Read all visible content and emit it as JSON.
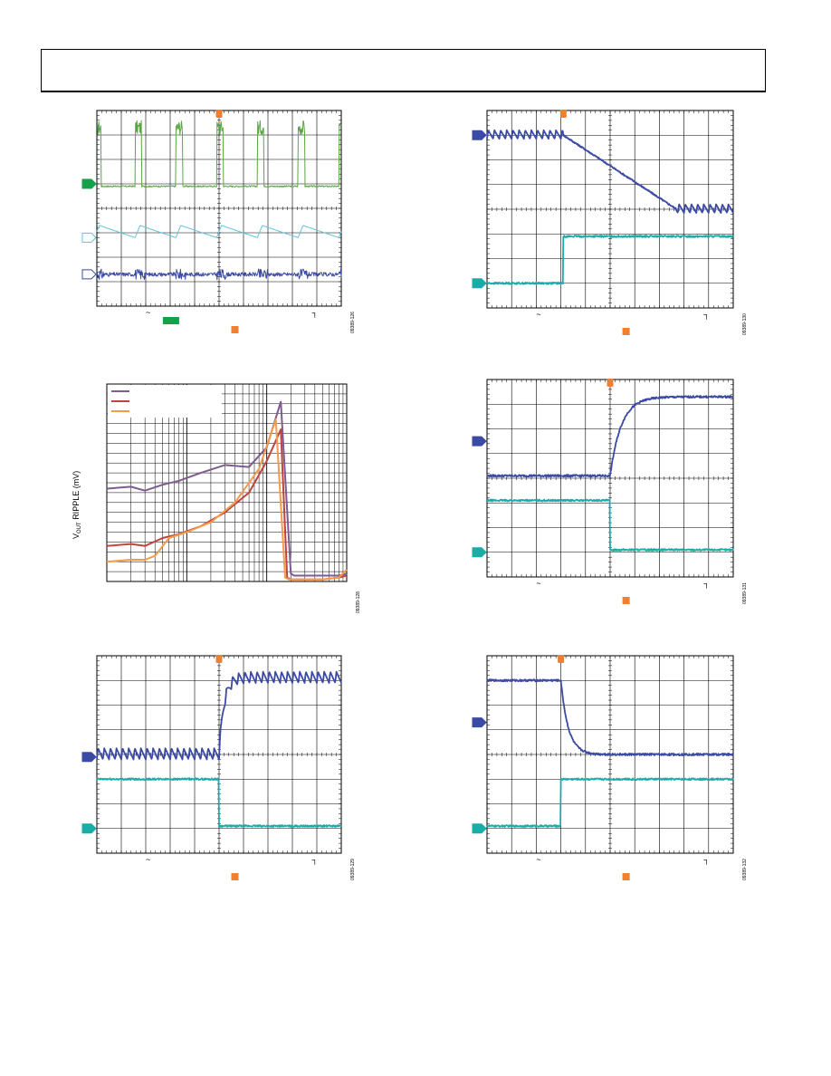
{
  "colors": {
    "ch1_green": "#5aa544",
    "ch2_lightblue": "#63c1de",
    "ch3_navy": "#3b4aa5",
    "ch_teal": "#1aada7",
    "trigger_orange": "#f07f30",
    "grid": "#000000",
    "purple": "#7e5b90",
    "red": "#c0443e",
    "orange": "#f39b49",
    "marker_green": "#15a14a"
  },
  "chart_data": [
    {
      "id": "fig126",
      "type": "line",
      "kind": "oscilloscope",
      "figure_id": "09389-126",
      "grid": true,
      "grid_divisions": [
        10,
        8
      ],
      "channel_markers": [
        "filled-green",
        "outline-lightblue",
        "outline-navy"
      ],
      "series": [
        {
          "color_key": "ch1_green",
          "shape": "switching-pulses",
          "pulses": 6,
          "level_low_div": 4.9,
          "level_high_div": 7.3
        },
        {
          "color_key": "ch2_lightblue",
          "shape": "sawtooth",
          "periods": 6,
          "level_low_div": 2.8,
          "level_high_div": 3.3
        },
        {
          "color_key": "ch3_navy",
          "shape": "noise",
          "level_div": 1.3
        }
      ],
      "trigger_x_div": 5.0
    },
    {
      "id": "fig130",
      "type": "line",
      "kind": "oscilloscope",
      "figure_id": "09389-130",
      "grid": true,
      "grid_divisions": [
        10,
        8
      ],
      "series": [
        {
          "color_key": "ch3_navy",
          "shape": "ripple-then-ramp-down",
          "level_start_div": 7.0,
          "level_end_div": 4.0,
          "ramp_start_div": 3.1,
          "ramp_end_div": 7.7
        },
        {
          "color_key": "ch_teal",
          "shape": "step-up",
          "level_low_div": 1.0,
          "level_high_div": 2.9,
          "step_div": 3.1
        }
      ],
      "trigger_x_div": 3.1
    },
    {
      "id": "fig128",
      "type": "line",
      "figure_id": "09389-128",
      "ylabel": "V",
      "ylabel_sub": "OUT",
      "ylabel_rest": " RIPPLE (mV)",
      "xscale": "log",
      "xlim": [
        1,
        1000
      ],
      "ylim": [
        0,
        10
      ],
      "grid": true,
      "legend_position": "top-left",
      "series": [
        {
          "color_key": "purple",
          "x": [
            1,
            2,
            3,
            5,
            8,
            15,
            30,
            60,
            100,
            150,
            200,
            220,
            250,
            300,
            500,
            800,
            1000
          ],
          "y": [
            4.7,
            4.8,
            4.6,
            4.9,
            5.1,
            5.5,
            5.9,
            5.8,
            6.8,
            9.1,
            0.4,
            0.3,
            0.3,
            0.3,
            0.3,
            0.3,
            0.4
          ]
        },
        {
          "color_key": "red",
          "x": [
            1,
            2,
            3,
            5,
            8,
            15,
            30,
            60,
            100,
            150,
            180,
            200,
            250,
            300,
            500,
            800,
            1000
          ],
          "y": [
            1.8,
            1.9,
            1.8,
            2.2,
            2.4,
            2.8,
            3.5,
            4.5,
            6.1,
            7.7,
            0.2,
            0.1,
            0.1,
            0.1,
            0.1,
            0.2,
            0.3
          ]
        },
        {
          "color_key": "orange",
          "x": [
            1,
            2,
            3,
            4,
            6,
            10,
            20,
            40,
            80,
            130,
            170,
            190,
            250,
            300,
            500,
            800,
            1000
          ],
          "y": [
            1.0,
            1.1,
            1.1,
            1.3,
            2.2,
            2.5,
            3.0,
            4.0,
            5.7,
            8.2,
            0.2,
            0.1,
            0.1,
            0.1,
            0.1,
            0.2,
            0.6
          ]
        }
      ]
    },
    {
      "id": "fig131",
      "type": "line",
      "kind": "oscilloscope",
      "figure_id": "09389-131",
      "grid": true,
      "grid_divisions": [
        10,
        8
      ],
      "series": [
        {
          "color_key": "ch3_navy",
          "shape": "exponential-rise",
          "level_low_div": 4.1,
          "level_high_div": 7.3,
          "step_div": 5.0
        },
        {
          "color_key": "ch_teal",
          "shape": "step-down",
          "level_low_div": 1.1,
          "level_high_div": 3.1,
          "step_div": 5.0
        }
      ],
      "trigger_x_div": 5.0
    },
    {
      "id": "fig129",
      "type": "line",
      "kind": "oscilloscope",
      "figure_id": "09389-129",
      "grid": true,
      "grid_divisions": [
        10,
        8
      ],
      "series": [
        {
          "color_key": "ch3_navy",
          "shape": "ripple-step-up",
          "level_low_div": 4.0,
          "level_high_div": 7.1,
          "step_div": 5.0
        },
        {
          "color_key": "ch_teal",
          "shape": "step-down",
          "level_low_div": 1.1,
          "level_high_div": 3.0,
          "step_div": 5.0
        }
      ],
      "trigger_x_div": 5.0
    },
    {
      "id": "fig132",
      "type": "line",
      "kind": "oscilloscope",
      "figure_id": "09389-132",
      "grid": true,
      "grid_divisions": [
        10,
        8
      ],
      "series": [
        {
          "color_key": "ch3_navy",
          "shape": "exponential-fall",
          "level_low_div": 4.0,
          "level_high_div": 7.0,
          "step_div": 3.0
        },
        {
          "color_key": "ch_teal",
          "shape": "step-up",
          "level_low_div": 1.1,
          "level_high_div": 3.0,
          "step_div": 3.0
        }
      ],
      "trigger_x_div": 3.0
    }
  ]
}
